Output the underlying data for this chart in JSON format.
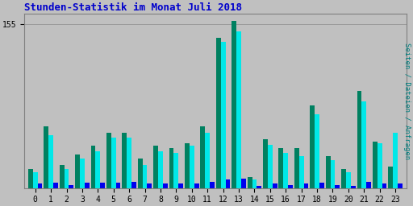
{
  "title": "Stunden-Statistik im Monat Juli 2018",
  "title_color": "#0000cc",
  "title_fontsize": 9,
  "xlabel_tick": [
    "0",
    "1",
    "2",
    "3",
    "4",
    "5",
    "6",
    "7",
    "8",
    "9",
    "10",
    "11",
    "12",
    "13",
    "14",
    "15",
    "16",
    "17",
    "18",
    "19",
    "20",
    "21",
    "22",
    "23"
  ],
  "ylabel_label": "Seiten / Dateien / Anfragen",
  "ylabel_color": "#008080",
  "background_color": "#c0c0c0",
  "plot_bg_color": "#c0c0c0",
  "grid_color": "#999999",
  "bar_width": 0.3,
  "seiten": [
    18,
    58,
    22,
    32,
    40,
    52,
    52,
    28,
    40,
    38,
    42,
    58,
    142,
    158,
    10,
    46,
    38,
    38,
    78,
    30,
    18,
    92,
    44,
    20
  ],
  "dateien": [
    15,
    50,
    18,
    28,
    35,
    48,
    48,
    22,
    35,
    33,
    40,
    52,
    138,
    148,
    8,
    41,
    33,
    30,
    70,
    26,
    15,
    82,
    42,
    52
  ],
  "anfragen": [
    4,
    5,
    3,
    5,
    5,
    5,
    6,
    4,
    4,
    4,
    4,
    6,
    8,
    9,
    2,
    4,
    3,
    4,
    5,
    3,
    2,
    6,
    4,
    4
  ],
  "seiten_color": "#008060",
  "dateien_color": "#00e8e8",
  "anfragen_color": "#0000ee",
  "ylim": [
    0,
    165
  ],
  "yticks": [
    155
  ],
  "num_gridlines": 6,
  "figsize": [
    5.12,
    2.56
  ],
  "dpi": 100
}
